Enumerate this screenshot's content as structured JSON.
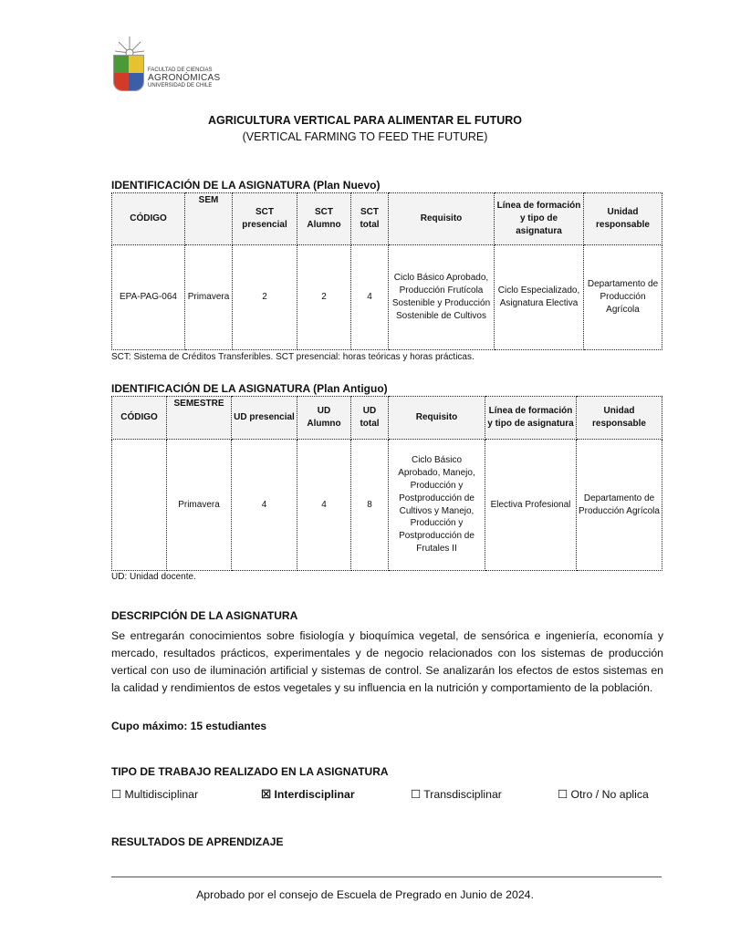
{
  "logo": {
    "line1": "FACULTAD DE CIENCIAS",
    "line2": "AGRONÓMICAS",
    "line3": "UNIVERSIDAD DE CHILE"
  },
  "title": "AGRICULTURA VERTICAL PARA ALIMENTAR EL FUTURO",
  "subtitle": "(VERTICAL FARMING TO FEED THE FUTURE)",
  "plan_nuevo": {
    "heading": "IDENTIFICACIÓN DE LA ASIGNATURA (Plan Nuevo)",
    "headers": [
      "CÓDIGO",
      "SEM",
      "SCT presencial",
      "SCT Alumno",
      "SCT total",
      "Requisito",
      "Línea de formación y tipo de asignatura",
      "Unidad responsable"
    ],
    "row": [
      "EPA-PAG-064",
      "Primavera",
      "2",
      "2",
      "4",
      "Ciclo Básico Aprobado, Producción Frutícola Sostenible y Producción Sostenible de Cultivos",
      "Ciclo Especializado, Asignatura Electiva",
      "Departamento de Producción Agrícola"
    ],
    "note": "SCT: Sistema de Créditos Transferibles. SCT presencial: horas teóricas y horas prácticas."
  },
  "plan_antiguo": {
    "heading": "IDENTIFICACIÓN DE LA ASIGNATURA (Plan Antiguo)",
    "headers": [
      "CÓDIGO",
      "SEMESTRE",
      "UD presencial",
      "UD Alumno",
      "UD total",
      "Requisito",
      "Línea de formación y tipo de asignatura",
      "Unidad responsable"
    ],
    "row": [
      "",
      "Primavera",
      "4",
      "4",
      "8",
      "Ciclo Básico Aprobado, Manejo, Producción y Postproducción de Cultivos y Manejo, Producción y Postproducción de Frutales II",
      "Electiva Profesional",
      "Departamento de Producción Agrícola"
    ],
    "note": "UD: Unidad docente."
  },
  "descripcion": {
    "heading": "DESCRIPCIÓN DE LA ASIGNATURA",
    "text": "Se entregarán conocimientos sobre fisiología y bioquímica vegetal, de sensórica e ingeniería, economía y mercado, resultados prácticos, experimentales y de negocio relacionados con los sistemas de producción vertical con uso de iluminación artificial y sistemas de control. Se analizarán los efectos de estos sistemas en la calidad y rendimientos de estos vegetales y su influencia en la nutrición y comportamiento de la población.",
    "cupo": "Cupo máximo: 15 estudiantes"
  },
  "tipo_trabajo": {
    "heading": "TIPO DE TRABAJO REALIZADO EN LA ASIGNATURA",
    "options": [
      {
        "label": "Multidisciplinar",
        "checked": false,
        "box": "☐"
      },
      {
        "label": "Interdisciplinar",
        "checked": true,
        "box": "☒"
      },
      {
        "label": "Transdisciplinar",
        "checked": false,
        "box": "☐"
      },
      {
        "label": "Otro / No aplica",
        "checked": false,
        "box": "☐"
      }
    ]
  },
  "resultados": {
    "heading": "RESULTADOS DE APRENDIZAJE"
  },
  "footer": "Aprobado por el consejo de Escuela de Pregrado en Junio de 2024."
}
